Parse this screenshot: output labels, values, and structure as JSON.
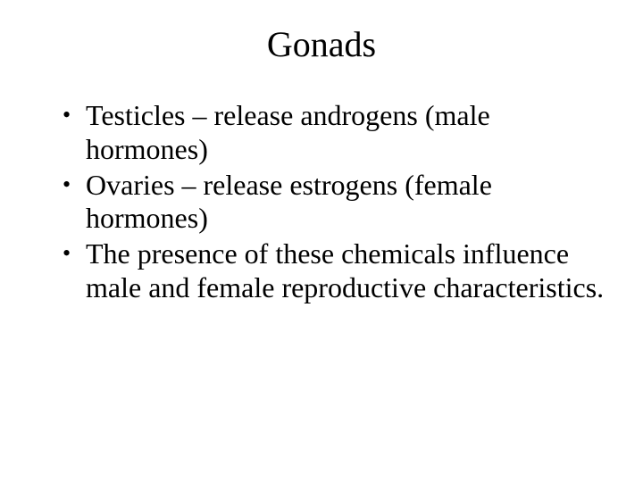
{
  "slide": {
    "title": "Gonads",
    "bullets": [
      "Testicles – release androgens (male hormones)",
      "Ovaries – release estrogens (female hormones)",
      "The presence of these chemicals influence male and female reproductive characteristics."
    ],
    "background_color": "#ffffff",
    "text_color": "#000000",
    "title_fontsize": 40,
    "body_fontsize": 32,
    "font_family": "Times New Roman"
  }
}
